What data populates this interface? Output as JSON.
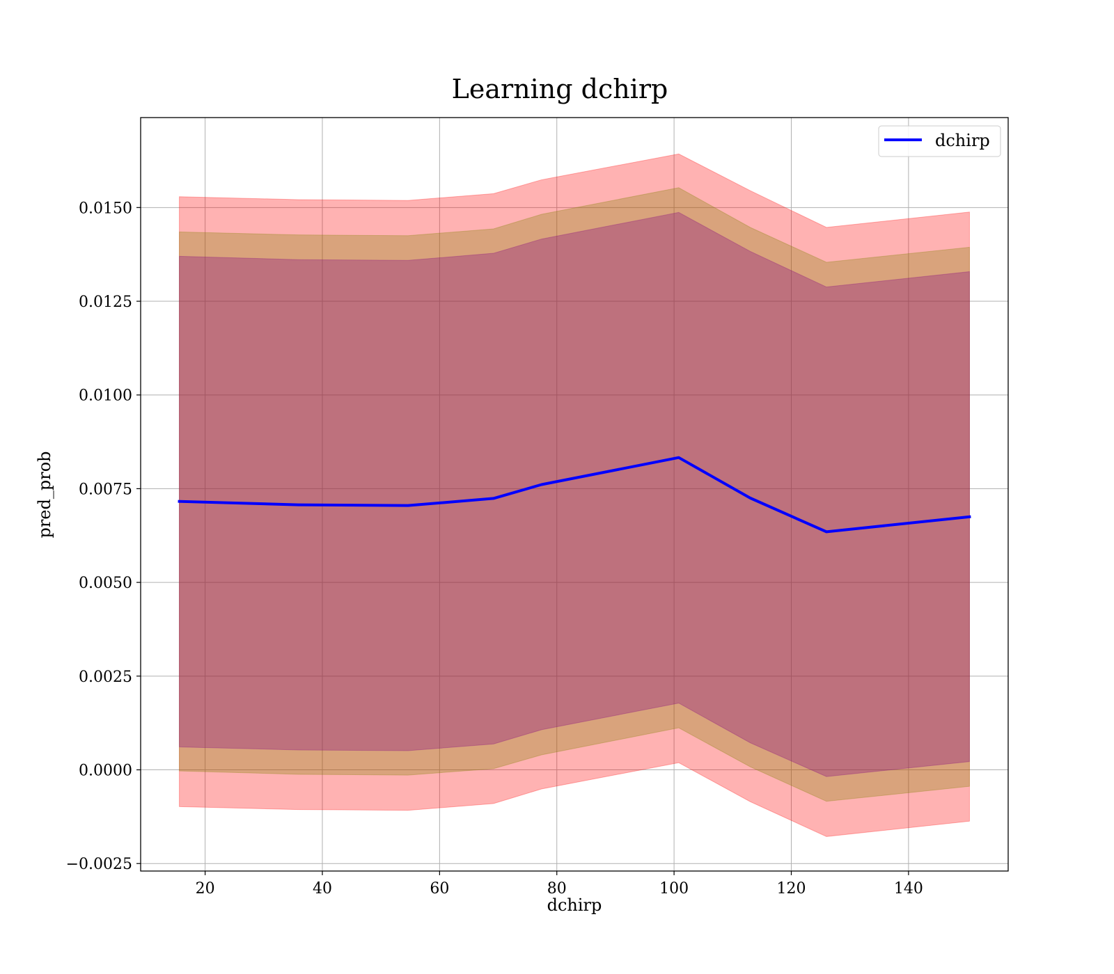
{
  "chart_data": {
    "type": "line",
    "title": "Learning dchirp",
    "xlabel": "dchirp",
    "ylabel": "pred_prob",
    "xlim": [
      9,
      157
    ],
    "ylim": [
      -0.0027,
      0.0174
    ],
    "xticks": [
      20,
      40,
      60,
      80,
      100,
      120,
      140
    ],
    "xtick_labels": [
      "20",
      "40",
      "60",
      "80",
      "100",
      "120",
      "140"
    ],
    "yticks": [
      -0.0025,
      0.0,
      0.0025,
      0.005,
      0.0075,
      0.01,
      0.0125,
      0.015
    ],
    "ytick_labels": [
      "−0.0025",
      "0.0000",
      "0.0025",
      "0.0050",
      "0.0075",
      "0.0100",
      "0.0125",
      "0.0150"
    ],
    "grid": true,
    "legend_position": "top-right",
    "x": [
      15.6,
      35.9,
      54.6,
      69.2,
      77.4,
      100.8,
      113.0,
      126.0,
      150.4
    ],
    "series": [
      {
        "name": "dchirp",
        "color": "#0000ff",
        "values": [
          0.00716,
          0.00707,
          0.00705,
          0.00724,
          0.00761,
          0.00833,
          0.00725,
          0.00635,
          0.00675
        ]
      }
    ],
    "bands": [
      {
        "kind": "wide",
        "fill": "#ff0000",
        "opacity": 0.3,
        "upper": [
          0.01529,
          0.01521,
          0.01519,
          0.01537,
          0.01574,
          0.01643,
          0.01545,
          0.01447,
          0.01488
        ],
        "lower": [
          -0.00098,
          -0.00106,
          -0.00108,
          -0.0009,
          -0.00051,
          0.00019,
          -0.00085,
          -0.00178,
          -0.00137
        ]
      },
      {
        "kind": "middle",
        "fill": "#808000",
        "opacity": 0.3,
        "upper": [
          0.01435,
          0.01427,
          0.01425,
          0.01443,
          0.01482,
          0.01553,
          0.01447,
          0.01354,
          0.01394
        ],
        "lower": [
          -3e-05,
          -0.00012,
          -0.00014,
          3e-05,
          0.0004,
          0.00112,
          8e-05,
          -0.00084,
          -0.00044
        ]
      },
      {
        "kind": "narrow",
        "fill": "#800080",
        "opacity": 0.3,
        "upper": [
          0.0137,
          0.01361,
          0.01359,
          0.01378,
          0.01416,
          0.01487,
          0.01383,
          0.01288,
          0.01329
        ],
        "lower": [
          0.00061,
          0.00053,
          0.00051,
          0.00069,
          0.00107,
          0.00178,
          0.00072,
          -0.00018,
          0.00022
        ]
      }
    ]
  }
}
